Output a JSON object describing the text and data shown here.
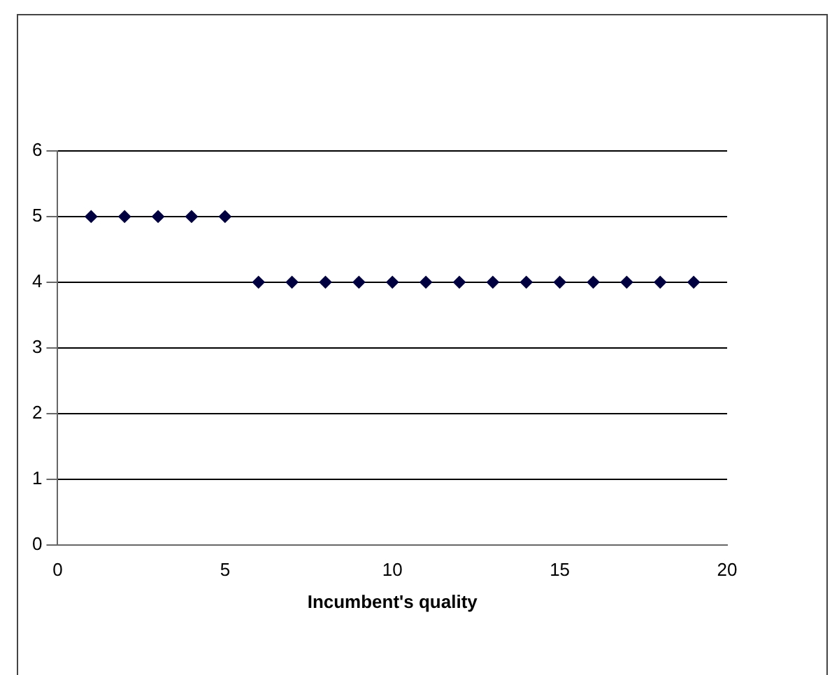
{
  "chart_data": {
    "type": "scatter",
    "xlabel": "Incumbent's quality",
    "x": [
      1,
      2,
      3,
      4,
      5,
      6,
      7,
      8,
      9,
      10,
      11,
      12,
      13,
      14,
      15,
      16,
      17,
      18,
      19
    ],
    "series": [
      {
        "color": "#000040",
        "values": [
          5,
          5,
          5,
          5,
          5,
          4,
          4,
          4,
          4,
          4,
          4,
          4,
          4,
          4,
          4,
          4,
          4,
          4,
          4
        ]
      }
    ],
    "xlim": [
      0,
      20
    ],
    "xticks": [
      0,
      5,
      10,
      15,
      20
    ],
    "ylim": [
      0,
      6
    ],
    "yticks": [
      0,
      1,
      2,
      3,
      4,
      5,
      6
    ],
    "grid": "y",
    "legend": false,
    "marker": "diamond"
  }
}
